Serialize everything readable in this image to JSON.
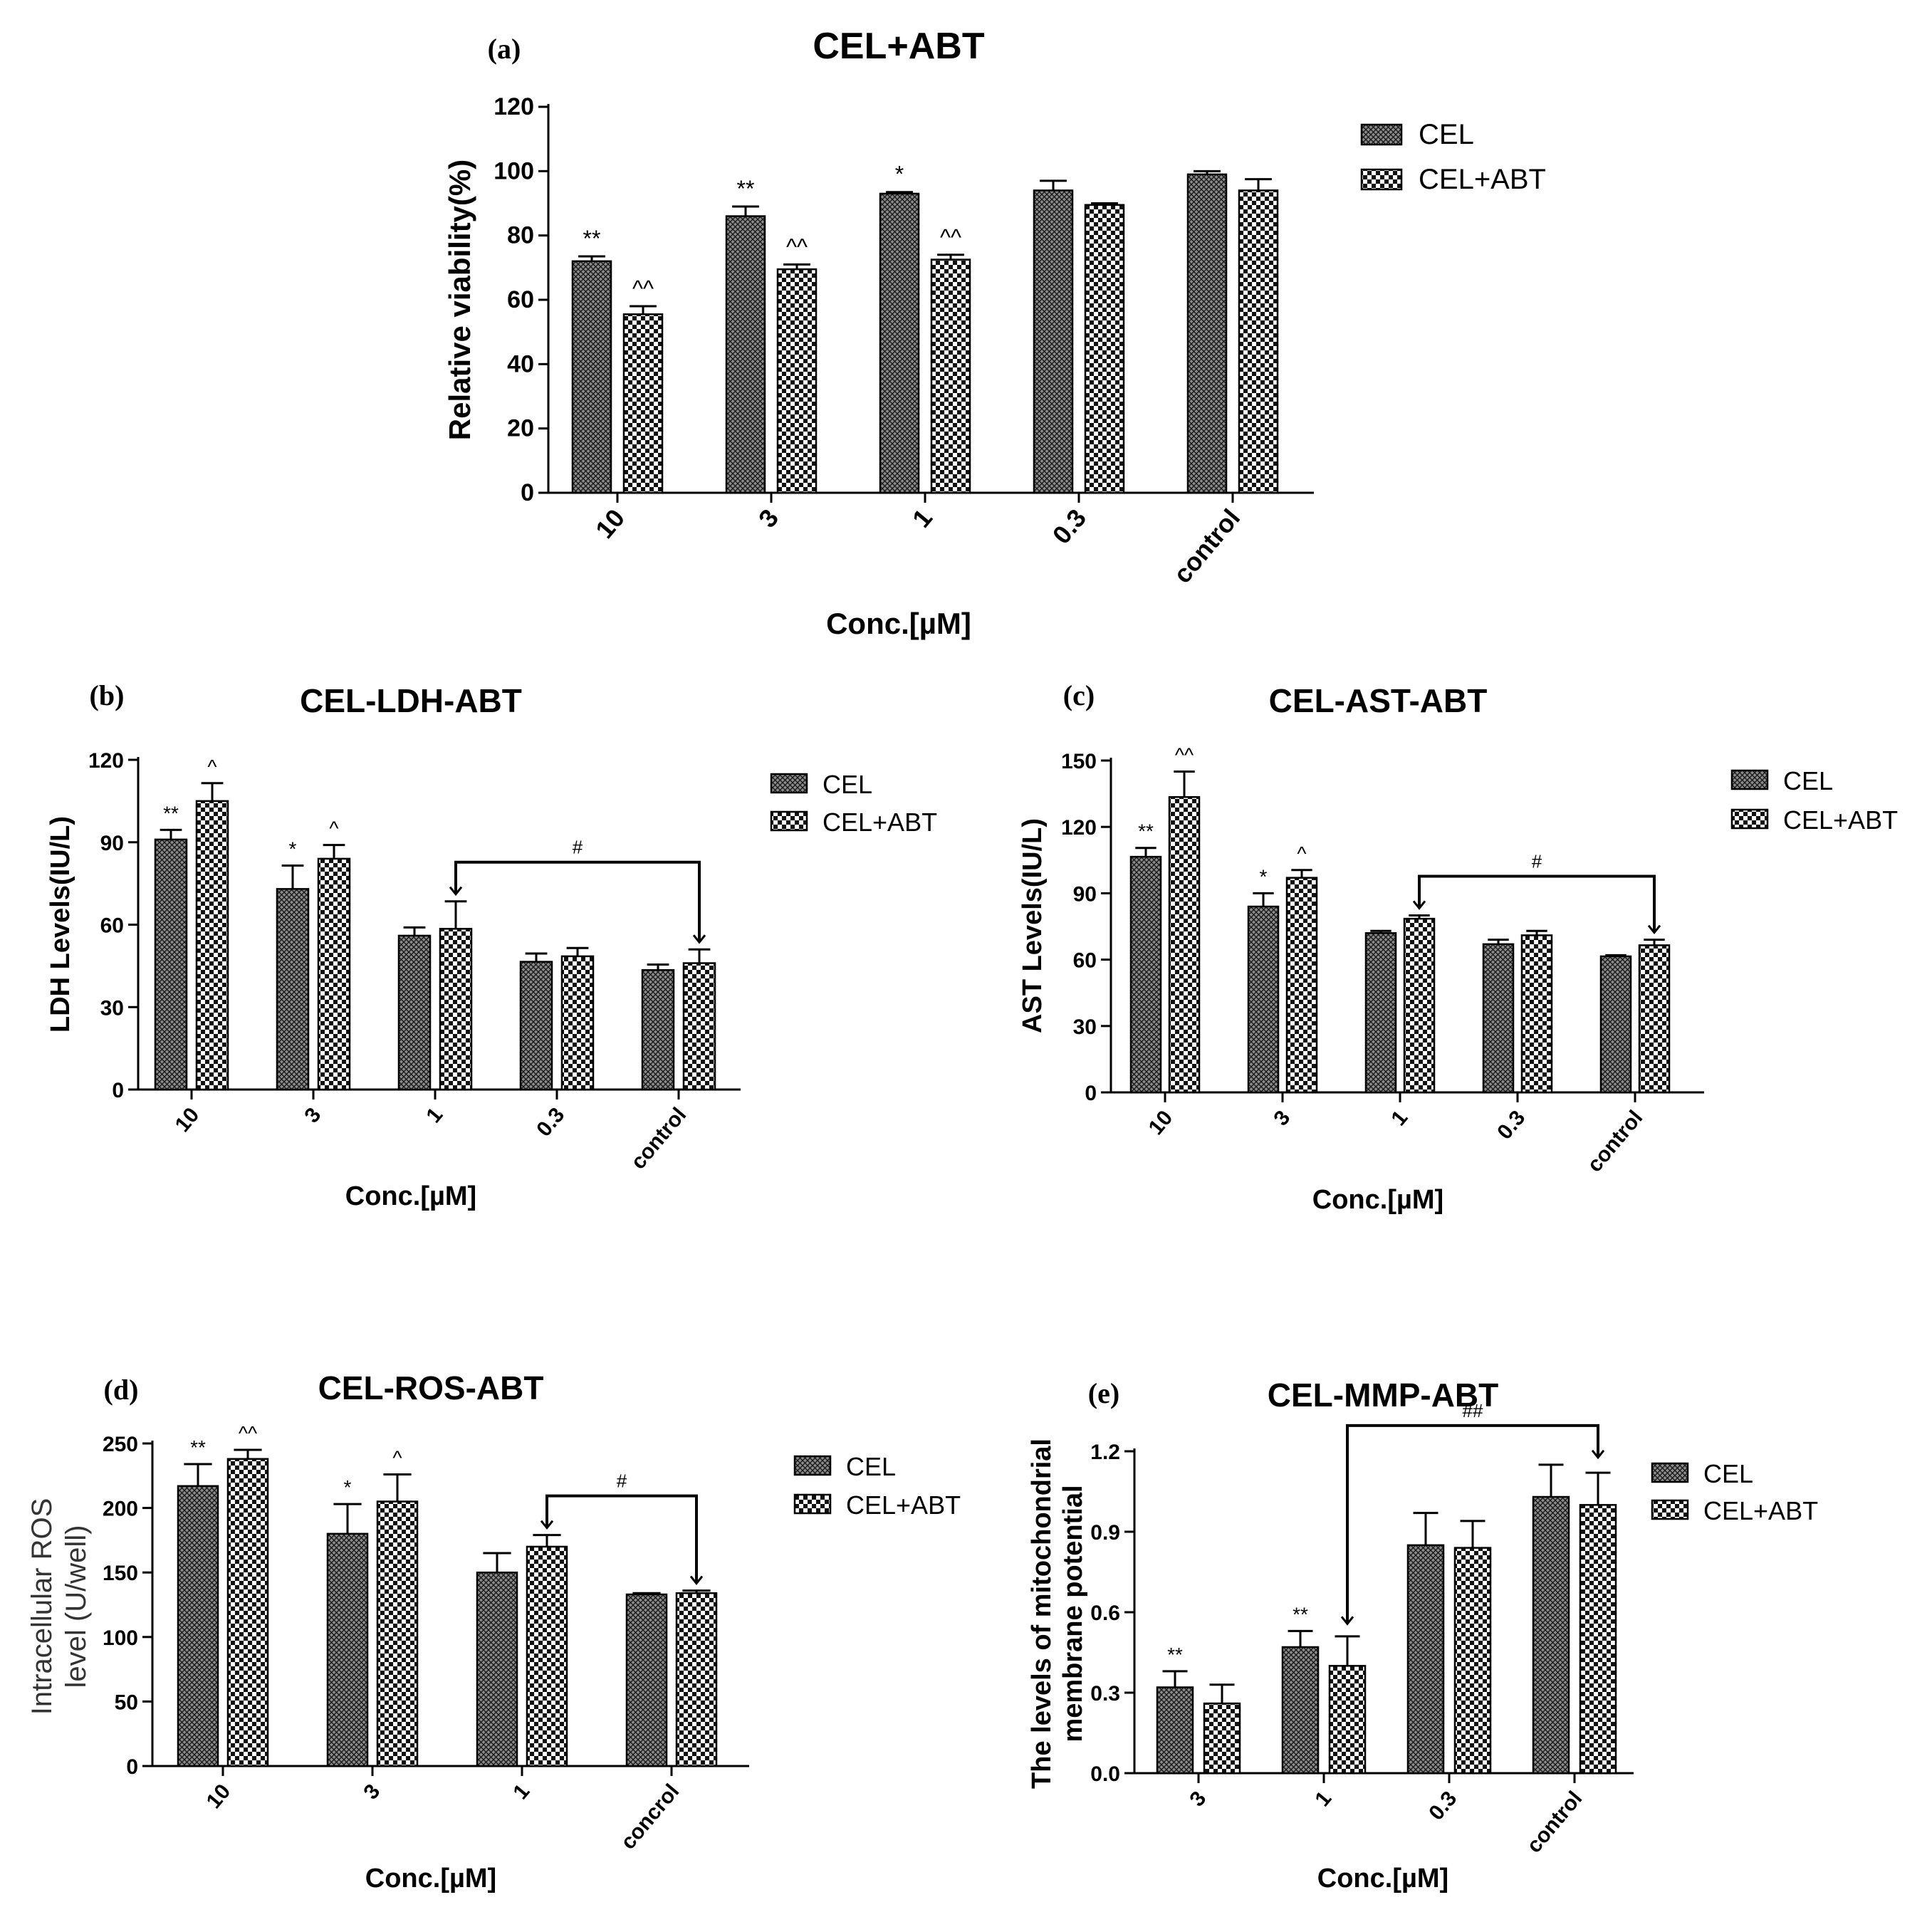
{
  "chart_data": [
    {
      "type": "bar",
      "panel": "(a)",
      "title": "CEL+ABT",
      "xlabel": "Conc.[µM]",
      "ylabel": "Relative viability(%)",
      "ylim": [
        0,
        120
      ],
      "yticks": [
        "0",
        "20",
        "40",
        "60",
        "80",
        "100",
        "120"
      ],
      "categories": [
        "10",
        "3",
        "1",
        "0.3",
        "control"
      ],
      "series": [
        {
          "name": "CEL",
          "values": [
            72,
            86,
            93,
            94,
            99
          ],
          "errors": [
            1.5,
            3,
            0.5,
            3,
            1
          ],
          "marks": [
            "**",
            "**",
            "*",
            "",
            ""
          ]
        },
        {
          "name": "CEL+ABT",
          "values": [
            55.5,
            69.5,
            72.5,
            89.5,
            94
          ],
          "errors": [
            2.5,
            1.5,
            1.5,
            0.5,
            3.5
          ],
          "marks": [
            "^^",
            "^^",
            "^^",
            "",
            ""
          ]
        }
      ],
      "legend": [
        "CEL",
        "CEL+ABT"
      ],
      "bracket": null
    },
    {
      "type": "bar",
      "panel": "(b)",
      "title": "CEL-LDH-ABT",
      "xlabel": "Conc.[µM]",
      "ylabel": "LDH   Levels(IU/L)",
      "ylim": [
        0,
        120
      ],
      "yticks": [
        "0",
        "30",
        "60",
        "90",
        "120"
      ],
      "categories": [
        "10",
        "3",
        "1",
        "0.3",
        "control"
      ],
      "series": [
        {
          "name": "CEL",
          "values": [
            91,
            73,
            56,
            46.5,
            43.5
          ],
          "errors": [
            3.5,
            8.5,
            3,
            3,
            2
          ],
          "marks": [
            "**",
            "*",
            "",
            "",
            ""
          ]
        },
        {
          "name": "CEL+ABT",
          "values": [
            105,
            84,
            58.5,
            48.5,
            46
          ],
          "errors": [
            6.5,
            5,
            10,
            3,
            5
          ],
          "marks": [
            "^",
            "^",
            "",
            "",
            ""
          ]
        }
      ],
      "legend": [
        "CEL",
        "CEL+ABT"
      ],
      "bracket": {
        "from": 2,
        "to": 4,
        "label": "#"
      }
    },
    {
      "type": "bar",
      "panel": "(c)",
      "title": "CEL-AST-ABT",
      "xlabel": "Conc.[µM]",
      "ylabel": "AST   Levels(IU/L)",
      "ylim": [
        0,
        150
      ],
      "yticks": [
        "0",
        "30",
        "60",
        "90",
        "120",
        "150"
      ],
      "categories": [
        "10",
        "3",
        "1",
        "0.3",
        "control"
      ],
      "series": [
        {
          "name": "CEL",
          "values": [
            106.5,
            84,
            72,
            67,
            61.5
          ],
          "errors": [
            4,
            6,
            1,
            2,
            0.5
          ],
          "marks": [
            "**",
            "*",
            "",
            "",
            ""
          ]
        },
        {
          "name": "CEL+ABT",
          "values": [
            133.5,
            97,
            78.5,
            71,
            66.5
          ],
          "errors": [
            11.5,
            3.5,
            1.5,
            2,
            2.5
          ],
          "marks": [
            "^^",
            "^",
            "",
            "",
            ""
          ]
        }
      ],
      "legend": [
        "CEL",
        "CEL+ABT"
      ],
      "bracket": {
        "from": 2,
        "to": 4,
        "label": "#"
      }
    },
    {
      "type": "bar",
      "panel": "(d)",
      "title": "CEL-ROS-ABT",
      "xlabel": "Conc.[µM]",
      "ylabel": [
        "Intracellular ROS",
        "level (U/well)"
      ],
      "ylim": [
        0,
        250
      ],
      "yticks": [
        "0",
        "50",
        "100",
        "150",
        "200",
        "250"
      ],
      "categories": [
        "10",
        "3",
        "1",
        "concrol"
      ],
      "series": [
        {
          "name": "CEL",
          "values": [
            217,
            180,
            150,
            133
          ],
          "errors": [
            17,
            23,
            15,
            1
          ],
          "marks": [
            "**",
            "*",
            "",
            ""
          ]
        },
        {
          "name": "CEL+ABT",
          "values": [
            238,
            205,
            170,
            134
          ],
          "errors": [
            7,
            21,
            9,
            2
          ],
          "marks": [
            "^^",
            "^",
            "",
            ""
          ]
        }
      ],
      "legend": [
        "CEL",
        "CEL+ABT"
      ],
      "bracket": {
        "from": 2,
        "to": 3,
        "label": "#"
      }
    },
    {
      "type": "bar",
      "panel": "(e)",
      "title": "CEL-MMP-ABT",
      "xlabel": "Conc.[µM]",
      "ylabel": [
        "The levels of mitochondrial",
        "membrane potential"
      ],
      "ylim": [
        0,
        1.2
      ],
      "yticks": [
        "0.0",
        "0.3",
        "0.6",
        "0.9",
        "1.2"
      ],
      "categories": [
        "3",
        "1",
        "0.3",
        "control"
      ],
      "series": [
        {
          "name": "CEL",
          "values": [
            0.32,
            0.47,
            0.85,
            1.03
          ],
          "errors": [
            0.06,
            0.06,
            0.12,
            0.12
          ],
          "marks": [
            "**",
            "**",
            "",
            ""
          ]
        },
        {
          "name": "CEL+ABT",
          "values": [
            0.26,
            0.4,
            0.84,
            1.0
          ],
          "errors": [
            0.07,
            0.11,
            0.1,
            0.12
          ],
          "marks": [
            "",
            "",
            "",
            ""
          ]
        }
      ],
      "legend": [
        "CEL",
        "CEL+ABT"
      ],
      "bracket": {
        "from": 1,
        "to": 3,
        "label": "##"
      }
    }
  ]
}
